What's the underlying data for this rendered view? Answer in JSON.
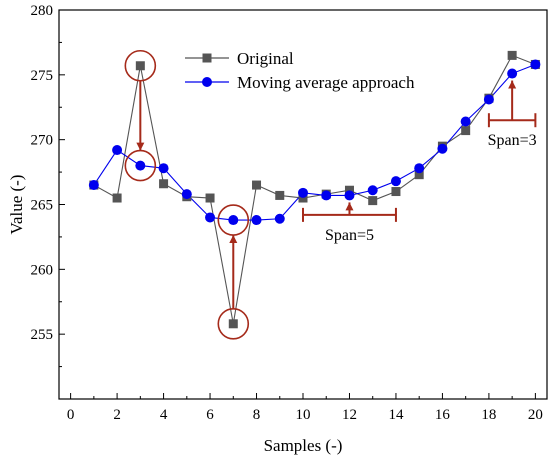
{
  "chart_data": {
    "type": "line",
    "xlabel": "Samples (-)",
    "ylabel": "Value (-)",
    "xlim": [
      -0.5,
      20.5
    ],
    "ylim": [
      250,
      280
    ],
    "xticks": [
      0,
      2,
      4,
      6,
      8,
      10,
      12,
      14,
      16,
      18,
      20
    ],
    "yticks": [
      255,
      260,
      265,
      270,
      275,
      280
    ],
    "legend_position": "top-center",
    "series": [
      {
        "name": "Original",
        "marker": "square",
        "color": "#555555",
        "x": [
          1,
          2,
          3,
          4,
          5,
          6,
          7,
          8,
          9,
          10,
          11,
          12,
          13,
          14,
          15,
          16,
          17,
          18,
          19,
          20
        ],
        "y": [
          266.5,
          265.5,
          275.7,
          266.6,
          265.6,
          265.5,
          255.8,
          266.5,
          265.7,
          265.5,
          265.8,
          266.1,
          265.3,
          266.0,
          267.3,
          269.5,
          270.7,
          273.2,
          276.5,
          275.8
        ]
      },
      {
        "name": "Moving average approach",
        "marker": "circle",
        "color": "#0000ee",
        "x": [
          1,
          2,
          3,
          4,
          5,
          6,
          7,
          8,
          9,
          10,
          11,
          12,
          13,
          14,
          15,
          16,
          17,
          18,
          19,
          20
        ],
        "y": [
          266.5,
          269.2,
          268.0,
          267.8,
          265.8,
          264.0,
          263.8,
          263.8,
          263.9,
          265.9,
          265.7,
          265.7,
          266.1,
          266.8,
          267.8,
          269.3,
          271.4,
          273.1,
          275.1,
          275.8
        ]
      }
    ],
    "annotations": {
      "span5_label": "Span=5",
      "span3_label": "Span=3"
    },
    "colors": {
      "highlight": "#a52a1a",
      "axis": "#000000"
    }
  }
}
